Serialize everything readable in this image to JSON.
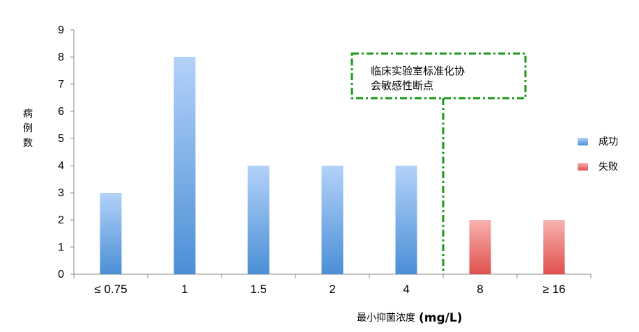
{
  "chart_data": {
    "type": "bar",
    "categories": [
      "≤ 0.75",
      "1",
      "1.5",
      "2",
      "4",
      "8",
      "≥ 16"
    ],
    "series": [
      {
        "name": "成功",
        "values": [
          3,
          8,
          4,
          4,
          4,
          0,
          0
        ]
      },
      {
        "name": "失败",
        "values": [
          0,
          0,
          0,
          0,
          0,
          2,
          2
        ]
      }
    ],
    "ylim": [
      0,
      9
    ],
    "yticks": [
      0,
      1,
      2,
      3,
      4,
      5,
      6,
      7,
      8,
      9
    ],
    "ylabel": "病例数",
    "xlabel": "最小抑菌浓度",
    "xlabel_unit": "(mg/L)",
    "legend_position": "right",
    "grid": false,
    "colors": {
      "success_top": "#b3d2f9",
      "success_bottom": "#4b8fd6",
      "failure_top": "#f7b2b0",
      "failure_bottom": "#e0504d",
      "annotation": "#1a9a1a"
    },
    "annotation": {
      "lines": [
        "临床实验室标准化协",
        "会敏感性断点"
      ],
      "between_categories": [
        "4",
        "8"
      ]
    }
  }
}
